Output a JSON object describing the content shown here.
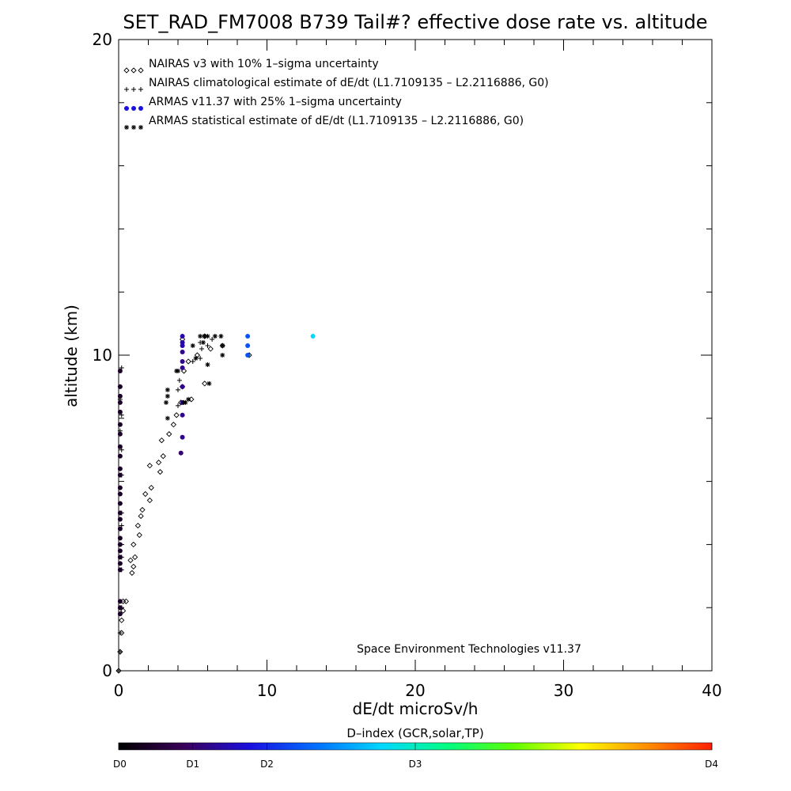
{
  "chart_data": {
    "type": "scatter",
    "title": "SET_RAD_FM7008  B739 Tail#? effective dose rate vs. altitude",
    "xlabel": "dE/dt microSv/h",
    "ylabel": "altitude (km)",
    "xlim": [
      0,
      40
    ],
    "ylim": [
      0,
      20
    ],
    "x_ticks": [
      0,
      10,
      20,
      30,
      40
    ],
    "y_ticks": [
      0,
      10,
      20
    ],
    "x_minor_step": 2,
    "y_minor_step": 2,
    "legend_position": "top-left",
    "credit": "Space Environment Technologies v11.37",
    "colorbar": {
      "title": "D–index (GCR,solar,TP)",
      "labels": [
        {
          "text": "D0",
          "value": 0
        },
        {
          "text": "D1",
          "value": 1
        },
        {
          "text": "D2",
          "value": 2
        },
        {
          "text": "D3",
          "value": 3
        },
        {
          "text": "D4",
          "value": 4
        }
      ],
      "label_positions": [
        0,
        12.5,
        25,
        50,
        100
      ],
      "colors": [
        "#000000",
        "#3a005a",
        "#1a10e0",
        "#0070ff",
        "#00d8ff",
        "#00ff80",
        "#60ff00",
        "#ffff00",
        "#ff9000",
        "#ff2000"
      ]
    },
    "series": [
      {
        "name": "NAIRAS v3 with 10% 1–sigma uncertainty",
        "marker": "diamond",
        "color": "#000000",
        "points": [
          [
            0.0,
            0.0
          ],
          [
            0.1,
            0.6
          ],
          [
            0.2,
            1.2
          ],
          [
            0.2,
            1.6
          ],
          [
            0.3,
            1.9
          ],
          [
            0.5,
            2.2
          ],
          [
            0.3,
            2.2
          ],
          [
            0.9,
            3.1
          ],
          [
            1.0,
            3.3
          ],
          [
            0.8,
            3.5
          ],
          [
            1.1,
            3.6
          ],
          [
            1.0,
            4.0
          ],
          [
            1.4,
            4.3
          ],
          [
            1.3,
            4.6
          ],
          [
            1.5,
            4.9
          ],
          [
            1.6,
            5.1
          ],
          [
            2.1,
            5.4
          ],
          [
            1.8,
            5.6
          ],
          [
            2.2,
            5.8
          ],
          [
            2.8,
            6.3
          ],
          [
            2.1,
            6.5
          ],
          [
            2.7,
            6.6
          ],
          [
            3.0,
            6.8
          ],
          [
            2.9,
            7.3
          ],
          [
            3.4,
            7.5
          ],
          [
            3.7,
            7.8
          ],
          [
            3.9,
            8.1
          ],
          [
            4.2,
            8.5
          ],
          [
            4.9,
            8.6
          ],
          [
            4.3,
            9.0
          ],
          [
            5.8,
            9.1
          ],
          [
            4.4,
            9.5
          ],
          [
            4.7,
            9.8
          ],
          [
            5.3,
            10.0
          ],
          [
            6.2,
            10.2
          ],
          [
            7.0,
            10.3
          ],
          [
            4.3,
            10.5
          ],
          [
            5.8,
            10.6
          ],
          [
            8.8,
            10.0
          ]
        ]
      },
      {
        "name": "NAIRAS climatological estimate of dE/dt (L1.7109135 – L2.2116886, G0)",
        "marker": "plus",
        "color": "#000000",
        "points": [
          [
            0.0,
            0.0
          ],
          [
            0.1,
            0.6
          ],
          [
            0.1,
            1.2
          ],
          [
            0.2,
            2.0
          ],
          [
            0.2,
            3.2
          ],
          [
            0.2,
            3.6
          ],
          [
            0.1,
            4.0
          ],
          [
            0.2,
            4.6
          ],
          [
            0.2,
            5.0
          ],
          [
            0.1,
            5.6
          ],
          [
            0.2,
            6.2
          ],
          [
            0.2,
            7.0
          ],
          [
            0.1,
            7.6
          ],
          [
            0.2,
            8.1
          ],
          [
            0.1,
            8.6
          ],
          [
            0.1,
            9.0
          ],
          [
            0.2,
            9.6
          ],
          [
            4.0,
            8.4
          ],
          [
            4.0,
            8.9
          ],
          [
            4.1,
            9.2
          ],
          [
            5.0,
            9.8
          ],
          [
            5.5,
            9.9
          ],
          [
            5.6,
            10.2
          ],
          [
            6.0,
            10.3
          ],
          [
            5.5,
            10.4
          ],
          [
            6.3,
            10.5
          ],
          [
            6.9,
            10.6
          ],
          [
            5.8,
            10.6
          ],
          [
            6.5,
            10.6
          ]
        ]
      },
      {
        "name": "ARMAS v11.37 with 25% 1–sigma uncertainty",
        "marker": "circle",
        "color": "#1030c0",
        "points": [
          [
            0.1,
            9.5
          ],
          [
            0.1,
            9.0
          ],
          [
            0.1,
            8.7
          ],
          [
            0.1,
            8.5
          ],
          [
            0.1,
            8.2
          ],
          [
            0.1,
            7.8
          ],
          [
            0.1,
            7.5
          ],
          [
            0.1,
            7.1
          ],
          [
            0.1,
            6.8
          ],
          [
            0.1,
            6.4
          ],
          [
            0.1,
            6.2
          ],
          [
            0.1,
            5.8
          ],
          [
            0.1,
            5.6
          ],
          [
            0.1,
            5.3
          ],
          [
            0.1,
            5.0
          ],
          [
            0.1,
            4.8
          ],
          [
            0.1,
            4.5
          ],
          [
            0.1,
            4.2
          ],
          [
            0.1,
            4.0
          ],
          [
            0.1,
            3.8
          ],
          [
            0.1,
            3.6
          ],
          [
            0.1,
            3.4
          ],
          [
            0.1,
            3.2
          ],
          [
            0.1,
            2.2
          ],
          [
            0.1,
            2.0
          ],
          [
            0.1,
            1.8
          ],
          [
            4.2,
            6.9
          ],
          [
            4.3,
            7.4
          ],
          [
            4.3,
            8.1
          ],
          [
            4.3,
            8.5
          ],
          [
            4.3,
            9.0
          ],
          [
            4.3,
            9.6
          ],
          [
            4.3,
            9.8
          ],
          [
            4.3,
            10.1
          ],
          [
            4.3,
            10.3
          ],
          [
            4.3,
            10.4
          ],
          [
            4.3,
            10.6
          ],
          [
            8.7,
            10.6
          ],
          [
            8.7,
            10.3
          ],
          [
            8.7,
            10.0
          ],
          [
            13.1,
            10.6
          ]
        ],
        "d_index": [
          0.2,
          0.2,
          0.2,
          0.2,
          0.2,
          0.2,
          0.2,
          0.2,
          0.2,
          0.2,
          0.2,
          0.2,
          0.2,
          0.2,
          0.2,
          0.2,
          0.2,
          0.2,
          0.2,
          0.2,
          0.2,
          0.2,
          0.2,
          0.2,
          0.2,
          0.2,
          0.5,
          0.6,
          0.6,
          0.6,
          0.6,
          0.6,
          0.6,
          0.6,
          0.7,
          0.7,
          0.7,
          1.2,
          1.2,
          1.2,
          1.8
        ]
      },
      {
        "name": "ARMAS statistical estimate of dE/dt (L1.7109135 – L2.2116886, G0)",
        "marker": "asterisk",
        "color": "#000000",
        "points": [
          [
            3.3,
            8.0
          ],
          [
            3.2,
            8.5
          ],
          [
            3.3,
            8.7
          ],
          [
            3.3,
            8.9
          ],
          [
            3.9,
            9.5
          ],
          [
            4.5,
            8.5
          ],
          [
            4.7,
            8.6
          ],
          [
            5.2,
            9.9
          ],
          [
            5.0,
            10.3
          ],
          [
            5.7,
            10.4
          ],
          [
            6.0,
            9.7
          ],
          [
            6.1,
            9.1
          ],
          [
            5.8,
            10.6
          ],
          [
            6.0,
            10.6
          ],
          [
            6.5,
            10.6
          ],
          [
            6.9,
            10.6
          ],
          [
            7.0,
            10.3
          ],
          [
            7.0,
            10.0
          ],
          [
            4.0,
            9.5
          ],
          [
            5.5,
            10.6
          ],
          [
            4.4,
            8.5
          ]
        ]
      }
    ]
  }
}
